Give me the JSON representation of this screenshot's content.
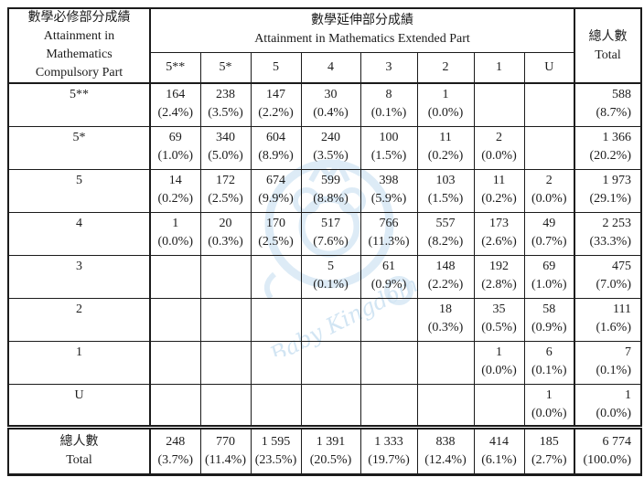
{
  "table": {
    "header": {
      "compulsory_title": [
        "數學必修部分成績",
        "Attainment in Mathematics",
        "Compulsory Part"
      ],
      "extended_title": [
        "數學延伸部分成績",
        "Attainment in Mathematics Extended Part"
      ],
      "grade_columns": [
        "5**",
        "5*",
        "5",
        "4",
        "3",
        "2",
        "1",
        "U"
      ],
      "total_label": [
        "總人數",
        "Total"
      ]
    },
    "rows": [
      {
        "label": "5**",
        "cells": [
          {
            "count": "164",
            "pct": "(2.4%)"
          },
          {
            "count": "238",
            "pct": "(3.5%)"
          },
          {
            "count": "147",
            "pct": "(2.2%)"
          },
          {
            "count": "30",
            "pct": "(0.4%)"
          },
          {
            "count": "8",
            "pct": "(0.1%)"
          },
          {
            "count": "1",
            "pct": "(0.0%)"
          },
          null,
          null
        ],
        "total": {
          "count": "588",
          "pct": "(8.7%)"
        }
      },
      {
        "label": "5*",
        "cells": [
          {
            "count": "69",
            "pct": "(1.0%)"
          },
          {
            "count": "340",
            "pct": "(5.0%)"
          },
          {
            "count": "604",
            "pct": "(8.9%)"
          },
          {
            "count": "240",
            "pct": "(3.5%)"
          },
          {
            "count": "100",
            "pct": "(1.5%)"
          },
          {
            "count": "11",
            "pct": "(0.2%)"
          },
          {
            "count": "2",
            "pct": "(0.0%)"
          },
          null
        ],
        "total": {
          "count": "1 366",
          "pct": "(20.2%)"
        }
      },
      {
        "label": "5",
        "cells": [
          {
            "count": "14",
            "pct": "(0.2%)"
          },
          {
            "count": "172",
            "pct": "(2.5%)"
          },
          {
            "count": "674",
            "pct": "(9.9%)"
          },
          {
            "count": "599",
            "pct": "(8.8%)"
          },
          {
            "count": "398",
            "pct": "(5.9%)"
          },
          {
            "count": "103",
            "pct": "(1.5%)"
          },
          {
            "count": "11",
            "pct": "(0.2%)"
          },
          {
            "count": "2",
            "pct": "(0.0%)"
          }
        ],
        "total": {
          "count": "1 973",
          "pct": "(29.1%)"
        }
      },
      {
        "label": "4",
        "cells": [
          {
            "count": "1",
            "pct": "(0.0%)"
          },
          {
            "count": "20",
            "pct": "(0.3%)"
          },
          {
            "count": "170",
            "pct": "(2.5%)"
          },
          {
            "count": "517",
            "pct": "(7.6%)"
          },
          {
            "count": "766",
            "pct": "(11.3%)"
          },
          {
            "count": "557",
            "pct": "(8.2%)"
          },
          {
            "count": "173",
            "pct": "(2.6%)"
          },
          {
            "count": "49",
            "pct": "(0.7%)"
          }
        ],
        "total": {
          "count": "2 253",
          "pct": "(33.3%)"
        }
      },
      {
        "label": "3",
        "cells": [
          null,
          null,
          null,
          {
            "count": "5",
            "pct": "(0.1%)"
          },
          {
            "count": "61",
            "pct": "(0.9%)"
          },
          {
            "count": "148",
            "pct": "(2.2%)"
          },
          {
            "count": "192",
            "pct": "(2.8%)"
          },
          {
            "count": "69",
            "pct": "(1.0%)"
          }
        ],
        "total": {
          "count": "475",
          "pct": "(7.0%)"
        }
      },
      {
        "label": "2",
        "cells": [
          null,
          null,
          null,
          null,
          null,
          {
            "count": "18",
            "pct": "(0.3%)"
          },
          {
            "count": "35",
            "pct": "(0.5%)"
          },
          {
            "count": "58",
            "pct": "(0.9%)"
          }
        ],
        "total": {
          "count": "111",
          "pct": "(1.6%)"
        }
      },
      {
        "label": "1",
        "cells": [
          null,
          null,
          null,
          null,
          null,
          null,
          {
            "count": "1",
            "pct": "(0.0%)"
          },
          {
            "count": "6",
            "pct": "(0.1%)"
          }
        ],
        "total": {
          "count": "7",
          "pct": "(0.1%)"
        }
      },
      {
        "label": "U",
        "cells": [
          null,
          null,
          null,
          null,
          null,
          null,
          null,
          {
            "count": "1",
            "pct": "(0.0%)"
          }
        ],
        "total": {
          "count": "1",
          "pct": "(0.0%)"
        }
      }
    ],
    "total_row": {
      "label": [
        "總人數",
        "Total"
      ],
      "cells": [
        {
          "count": "248",
          "pct": "(3.7%)"
        },
        {
          "count": "770",
          "pct": "(11.4%)"
        },
        {
          "count": "1 595",
          "pct": "(23.5%)"
        },
        {
          "count": "1 391",
          "pct": "(20.5%)"
        },
        {
          "count": "1 333",
          "pct": "(19.7%)"
        },
        {
          "count": "838",
          "pct": "(12.4%)"
        },
        {
          "count": "414",
          "pct": "(6.1%)"
        },
        {
          "count": "185",
          "pct": "(2.7%)"
        }
      ],
      "total": {
        "count": "6 774",
        "pct": "(100.0%)"
      }
    }
  },
  "watermark": {
    "text": "Baby Kingdom",
    "color": "#b7d6ec"
  }
}
